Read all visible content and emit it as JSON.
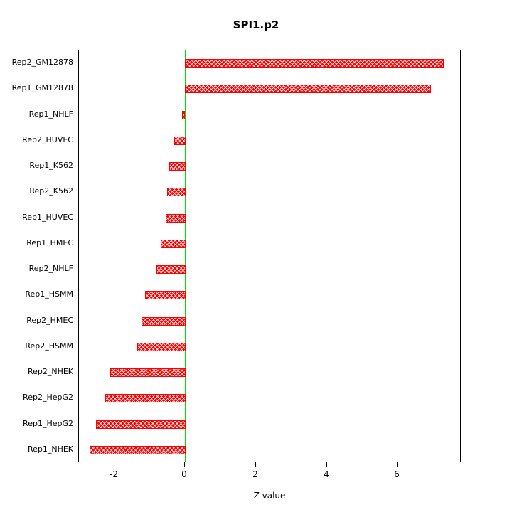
{
  "title": "SPI1.p2",
  "axis": {
    "xlabel": "Z-value"
  },
  "chart_data": {
    "type": "bar",
    "orientation": "horizontal",
    "title": "SPI1.p2",
    "xlabel": "Z-value",
    "categories": [
      "Rep2_GM12878",
      "Rep1_GM12878",
      "Rep1_NHLF",
      "Rep2_HUVEC",
      "Rep1_K562",
      "Rep2_K562",
      "Rep1_HUVEC",
      "Rep1_HMEC",
      "Rep2_NHLF",
      "Rep1_HSMM",
      "Rep2_HMEC",
      "Rep2_HSMM",
      "Rep2_NHEK",
      "Rep2_HepG2",
      "Rep1_HepG2",
      "Rep1_NHEK"
    ],
    "values": [
      7.3,
      6.95,
      -0.08,
      -0.32,
      -0.46,
      -0.52,
      -0.56,
      -0.7,
      -0.82,
      -1.14,
      -1.24,
      -1.36,
      -2.12,
      -2.26,
      -2.52,
      -2.7
    ],
    "xlim": [
      -3.0,
      7.8
    ],
    "xticks": [
      -2,
      0,
      2,
      4,
      6
    ],
    "grid": false,
    "legend": "none",
    "bar_color": "#ff0000",
    "bar_pattern": "crosshatch",
    "zero_line_color": "#00dd00",
    "frame_color": "#000000"
  }
}
